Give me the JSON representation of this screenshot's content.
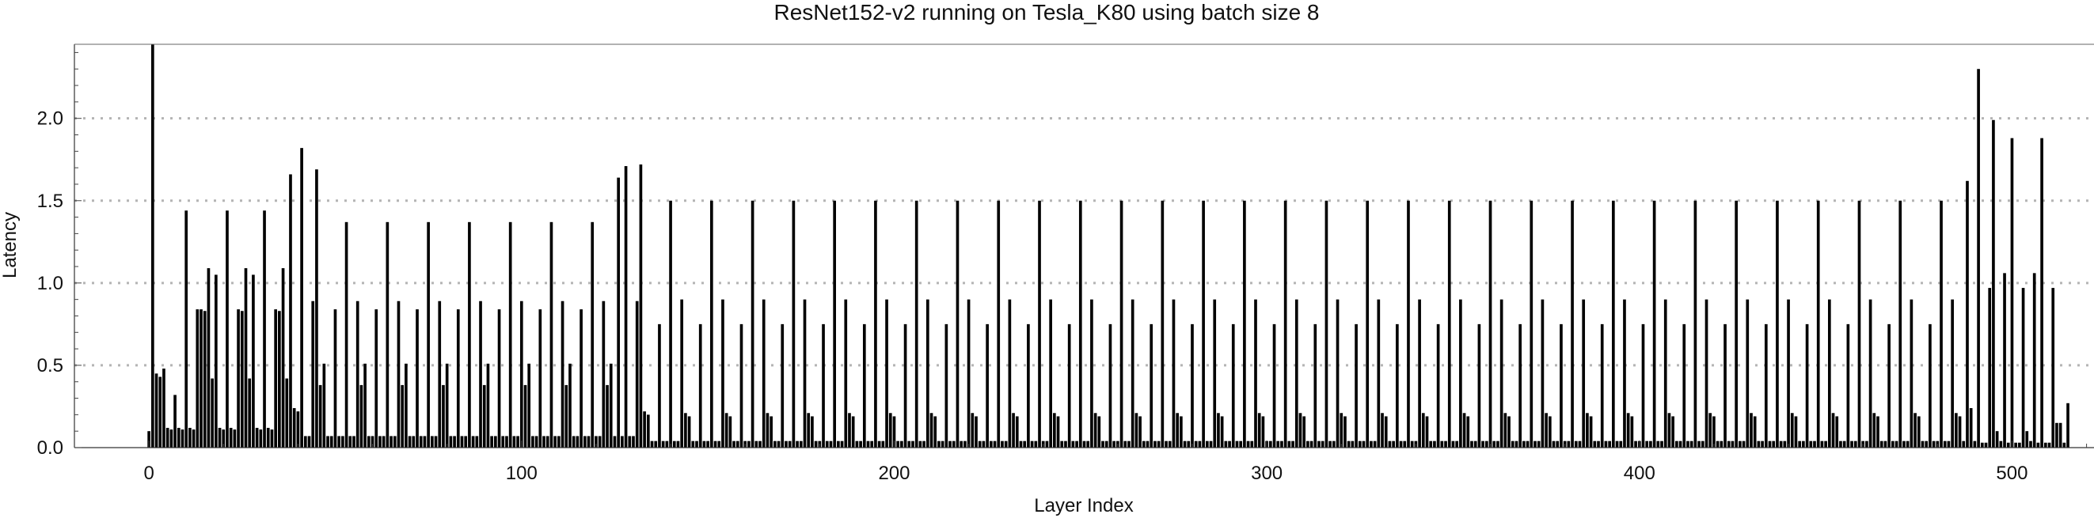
{
  "chart_data": {
    "type": "bar",
    "title": "ResNet152-v2 running on Tesla_K80 using batch size 8",
    "xlabel": "Layer Index",
    "ylabel": "Latency",
    "xlim": [
      -20,
      522
    ],
    "ylim": [
      0,
      2.45
    ],
    "x_ticks": [
      0,
      100,
      200,
      300,
      400,
      500
    ],
    "y_ticks": [
      0.0,
      0.5,
      1.0,
      1.5,
      2.0
    ],
    "x_tick_labels": [
      "0",
      "100",
      "200",
      "300",
      "400",
      "500"
    ],
    "y_tick_labels": [
      "0.0",
      "0.5",
      "1.0",
      "1.5",
      "2.0"
    ],
    "grid": "horizontal dotted at y ticks",
    "bar_color": "#000000",
    "grid_color": "#b4b4b4",
    "series": [
      {
        "x_start": 0,
        "values": [
          0.1,
          2.45,
          0.45,
          0.43,
          0.48,
          0.12,
          0.11,
          0.32,
          0.12,
          0.11,
          1.44,
          0.12,
          0.11,
          0.84,
          0.84,
          0.83,
          1.09,
          0.42,
          1.05,
          0.12,
          0.11,
          1.44,
          0.12,
          0.11,
          0.84,
          0.83,
          1.09,
          0.42,
          1.05,
          0.12,
          0.11,
          1.44,
          0.12,
          0.11,
          0.84,
          0.83,
          1.09,
          0.42,
          1.66,
          0.24,
          0.22,
          1.82,
          0.07,
          0.07,
          0.89,
          1.69,
          0.38,
          0.51,
          0.07,
          0.07,
          0.84,
          0.07,
          0.07,
          1.37,
          0.07,
          0.07,
          0.89,
          0.38,
          0.51,
          0.07,
          0.07,
          0.84,
          0.07,
          0.07,
          1.37,
          0.07,
          0.07,
          0.89,
          0.38,
          0.51,
          0.07,
          0.07,
          0.84,
          0.07,
          0.07,
          1.37,
          0.07,
          0.07,
          0.89,
          0.38,
          0.51,
          0.07,
          0.07,
          0.84,
          0.07,
          0.07,
          1.37,
          0.07,
          0.07,
          0.89,
          0.38,
          0.51,
          0.07,
          0.07,
          0.84,
          0.07,
          0.07,
          1.37,
          0.07,
          0.07,
          0.89,
          0.38,
          0.51,
          0.07,
          0.07,
          0.84,
          0.07,
          0.07,
          1.37,
          0.07,
          0.07,
          0.89,
          0.38,
          0.51,
          0.07,
          0.07,
          0.84,
          0.07,
          0.07,
          1.37,
          0.07,
          0.07,
          0.89,
          0.38,
          0.51,
          0.07,
          1.64,
          0.07,
          1.71,
          0.07,
          0.07,
          0.89,
          1.72,
          0.22,
          0.2,
          0.04,
          0.04,
          0.75,
          0.04,
          0.04,
          1.5,
          0.04,
          0.04,
          0.9,
          0.21,
          0.19,
          0.04,
          0.04,
          0.75,
          0.04,
          0.04,
          1.5,
          0.04,
          0.04,
          0.9,
          0.21,
          0.19,
          0.04,
          0.04,
          0.75,
          0.04,
          0.04,
          1.5,
          0.04,
          0.04,
          0.9,
          0.21,
          0.19,
          0.04,
          0.04,
          0.75,
          0.04,
          0.04,
          1.5,
          0.04,
          0.04,
          0.9,
          0.21,
          0.19,
          0.04,
          0.04,
          0.75,
          0.04,
          0.04,
          1.5,
          0.04,
          0.04,
          0.9,
          0.21,
          0.19,
          0.04,
          0.04,
          0.75,
          0.04,
          0.04,
          1.5,
          0.04,
          0.04,
          0.9,
          0.21,
          0.19,
          0.04,
          0.04,
          0.75,
          0.04,
          0.04,
          1.5,
          0.04,
          0.04,
          0.9,
          0.21,
          0.19,
          0.04,
          0.04,
          0.75,
          0.04,
          0.04,
          1.5,
          0.04,
          0.04,
          0.9,
          0.21,
          0.19,
          0.04,
          0.04,
          0.75,
          0.04,
          0.04,
          1.5,
          0.04,
          0.04,
          0.9,
          0.21,
          0.19,
          0.04,
          0.04,
          0.75,
          0.04,
          0.04,
          1.5,
          0.04,
          0.04,
          0.9,
          0.21,
          0.19,
          0.04,
          0.04,
          0.75,
          0.04,
          0.04,
          1.5,
          0.04,
          0.04,
          0.9,
          0.21,
          0.19,
          0.04,
          0.04,
          0.75,
          0.04,
          0.04,
          1.5,
          0.04,
          0.04,
          0.9,
          0.21,
          0.19,
          0.04,
          0.04,
          0.75,
          0.04,
          0.04,
          1.5,
          0.04,
          0.04,
          0.9,
          0.21,
          0.19,
          0.04,
          0.04,
          0.75,
          0.04,
          0.04,
          1.5,
          0.04,
          0.04,
          0.9,
          0.21,
          0.19,
          0.04,
          0.04,
          0.75,
          0.04,
          0.04,
          1.5,
          0.04,
          0.04,
          0.9,
          0.21,
          0.19,
          0.04,
          0.04,
          0.75,
          0.04,
          0.04,
          1.5,
          0.04,
          0.04,
          0.9,
          0.21,
          0.19,
          0.04,
          0.04,
          0.75,
          0.04,
          0.04,
          1.5,
          0.04,
          0.04,
          0.9,
          0.21,
          0.19,
          0.04,
          0.04,
          0.75,
          0.04,
          0.04,
          1.5,
          0.04,
          0.04,
          0.9,
          0.21,
          0.19,
          0.04,
          0.04,
          0.75,
          0.04,
          0.04,
          1.5,
          0.04,
          0.04,
          0.9,
          0.21,
          0.19,
          0.04,
          0.04,
          0.75,
          0.04,
          0.04,
          1.5,
          0.04,
          0.04,
          0.9,
          0.21,
          0.19,
          0.04,
          0.04,
          0.75,
          0.04,
          0.04,
          1.5,
          0.04,
          0.04,
          0.9,
          0.21,
          0.19,
          0.04,
          0.04,
          0.75,
          0.04,
          0.04,
          1.5,
          0.04,
          0.04,
          0.9,
          0.21,
          0.19,
          0.04,
          0.04,
          0.75,
          0.04,
          0.04,
          1.5,
          0.04,
          0.04,
          0.9,
          0.21,
          0.19,
          0.04,
          0.04,
          0.75,
          0.04,
          0.04,
          1.5,
          0.04,
          0.04,
          0.9,
          0.21,
          0.19,
          0.04,
          0.04,
          0.75,
          0.04,
          0.04,
          1.5,
          0.04,
          0.04,
          0.9,
          0.21,
          0.19,
          0.04,
          0.04,
          0.75,
          0.04,
          0.04,
          1.5,
          0.04,
          0.04,
          0.9,
          0.21,
          0.19,
          0.04,
          0.04,
          0.75,
          0.04,
          0.04,
          1.5,
          0.04,
          0.04,
          0.9,
          0.21,
          0.19,
          0.04,
          0.04,
          0.75,
          0.04,
          0.04,
          1.5,
          0.04,
          0.04,
          0.9,
          0.21,
          0.19,
          0.04,
          0.04,
          0.75,
          0.04,
          0.04,
          1.5,
          0.04,
          0.04,
          0.9,
          0.21,
          0.19,
          0.04,
          0.04,
          0.75,
          0.04,
          0.04,
          1.5,
          0.04,
          0.04,
          0.9,
          0.21,
          0.19,
          0.04,
          0.04,
          0.75,
          0.04,
          0.04,
          1.5,
          0.04,
          0.04,
          0.9,
          0.21,
          0.19,
          0.04,
          0.04,
          0.75,
          0.04,
          0.04,
          1.5,
          0.04,
          0.04,
          0.9,
          0.21,
          0.19,
          0.04,
          1.62,
          0.24,
          0.04,
          2.3,
          0.03,
          0.03,
          0.97,
          1.99,
          0.1,
          0.04,
          1.06,
          0.03,
          1.88,
          0.03,
          0.03,
          0.97,
          0.1,
          0.04,
          1.06,
          0.03,
          1.88,
          0.03,
          0.03,
          0.97,
          0.15,
          0.15,
          0.03,
          0.27
        ]
      }
    ]
  }
}
